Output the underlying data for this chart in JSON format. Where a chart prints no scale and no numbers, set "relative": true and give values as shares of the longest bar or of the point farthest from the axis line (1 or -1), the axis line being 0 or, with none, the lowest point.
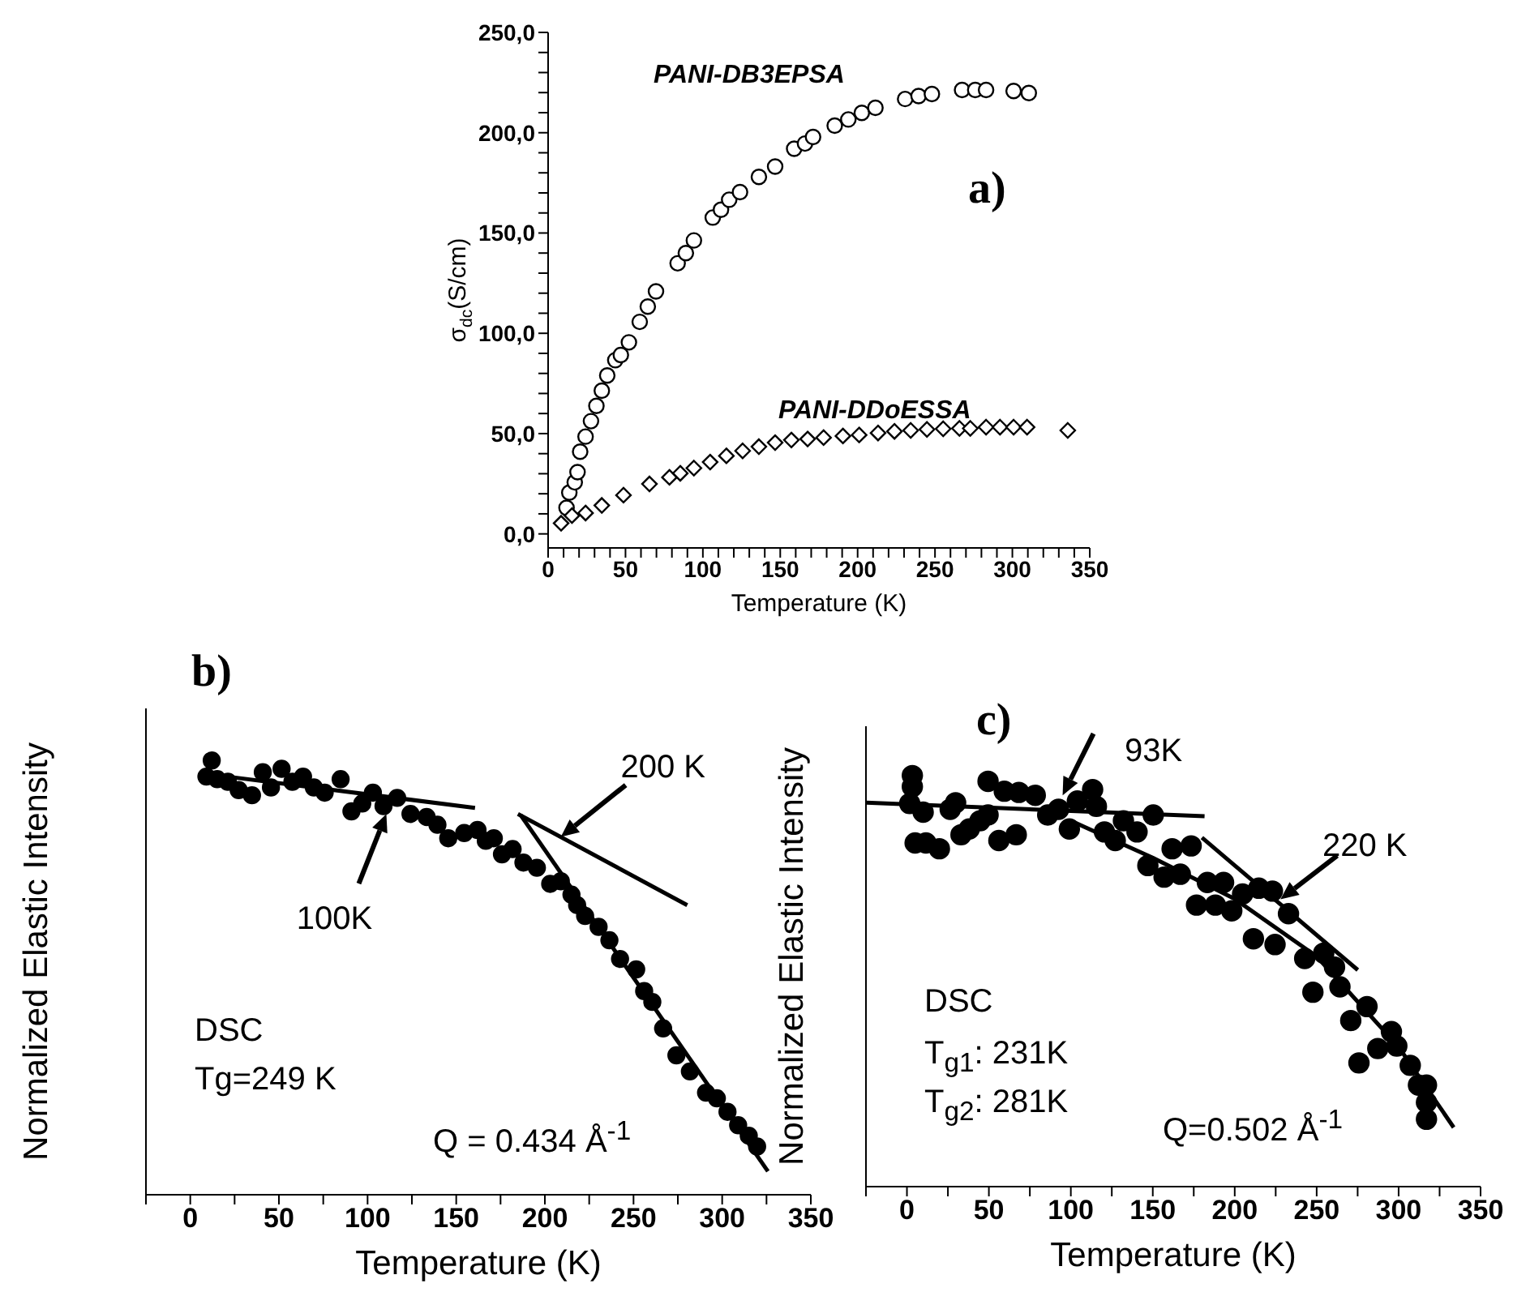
{
  "chart_data": [
    {
      "type": "scatter",
      "xlabel": "Temperature (K)",
      "ylabel": "σ$_{dc}$(S/cm)",
      "annotations": [
        "a)"
      ],
      "xlim": [
        0,
        350
      ],
      "ylim": [
        -7,
        250
      ],
      "xticks": [
        0,
        {
          "value": 10,
          "label": null
        },
        {
          "value": 20,
          "label": null
        },
        {
          "value": 30,
          "label": null
        },
        {
          "value": 40,
          "label": null
        },
        50,
        {
          "value": 60,
          "label": null
        },
        {
          "value": 70,
          "label": null
        },
        {
          "value": 80,
          "label": null
        },
        {
          "value": 90,
          "label": null
        },
        100,
        {
          "value": 110,
          "label": null
        },
        {
          "value": 120,
          "label": null
        },
        {
          "value": 130,
          "label": null
        },
        {
          "value": 140,
          "label": null
        },
        150,
        {
          "value": 160,
          "label": null
        },
        {
          "value": 170,
          "label": null
        },
        {
          "value": 180,
          "label": null
        },
        {
          "value": 190,
          "label": null
        },
        200,
        {
          "value": 210,
          "label": null
        },
        {
          "value": 220,
          "label": null
        },
        {
          "value": 230,
          "label": null
        },
        {
          "value": 240,
          "label": null
        },
        250,
        {
          "value": 260,
          "label": null
        },
        {
          "value": 270,
          "label": null
        },
        {
          "value": 280,
          "label": null
        },
        {
          "value": 290,
          "label": null
        },
        300,
        {
          "value": 310,
          "label": null
        },
        {
          "value": 320,
          "label": null
        },
        {
          "value": 330,
          "label": null
        },
        {
          "value": 340,
          "label": null
        },
        350
      ],
      "yticks": [
        {
          "value": 0,
          "label": "0,0"
        },
        {
          "value": 10,
          "label": null
        },
        {
          "value": 20,
          "label": null
        },
        {
          "value": 30,
          "label": null
        },
        {
          "value": 40,
          "label": null
        },
        {
          "value": 50,
          "label": "50,0"
        },
        {
          "value": 60,
          "label": null
        },
        {
          "value": 70,
          "label": null
        },
        {
          "value": 80,
          "label": null
        },
        {
          "value": 90,
          "label": null
        },
        {
          "value": 100,
          "label": "100,0"
        },
        {
          "value": 110,
          "label": null
        },
        {
          "value": 120,
          "label": null
        },
        {
          "value": 130,
          "label": null
        },
        {
          "value": 140,
          "label": null
        },
        {
          "value": 150,
          "label": "150,0"
        },
        {
          "value": 160,
          "label": null
        },
        {
          "value": 170,
          "label": null
        },
        {
          "value": 180,
          "label": null
        },
        {
          "value": 190,
          "label": null
        },
        {
          "value": 200,
          "label": "200,0"
        },
        {
          "value": 210,
          "label": null
        },
        {
          "value": 220,
          "label": null
        },
        {
          "value": 230,
          "label": null
        },
        {
          "value": 240,
          "label": null
        },
        {
          "value": 250,
          "label": "250,0"
        }
      ],
      "series": [
        {
          "name": "PANI-DB3EPSA",
          "color": "#000000",
          "marker": "circle",
          "x": [
            11.9,
            13.7,
            17.2,
            19,
            20.7,
            24.2,
            27.7,
            31.2,
            34.7,
            38.2,
            43.4,
            47,
            52.2,
            59.2,
            64.4,
            69.7,
            83.7,
            89,
            94.2,
            106.4,
            111.7,
            117,
            124,
            136.2,
            146.7,
            159,
            166,
            171.2,
            185.2,
            194,
            202.7,
            211.5,
            230.7,
            239.4,
            248,
            267.5,
            276,
            283,
            300.8,
            310.6
          ],
          "values": [
            13,
            20.6,
            25.7,
            30.8,
            41,
            48.5,
            56.2,
            63.8,
            71.4,
            79,
            86.6,
            89.2,
            95.5,
            105.7,
            113.3,
            120.9,
            134.9,
            140,
            146.3,
            157.7,
            161.6,
            166.6,
            170.4,
            178,
            183.1,
            192,
            194.6,
            197.9,
            203.5,
            206.6,
            209.9,
            212.4,
            216.8,
            218.3,
            219.3,
            221.3,
            221.3,
            221.3,
            220.8,
            219.8
          ]
        },
        {
          "name": "PANI-DDoESSA",
          "color": "#000000",
          "marker": "diamond",
          "x": [
            8.4,
            15.4,
            24.2,
            34.7,
            48.7,
            65.5,
            78.4,
            85.4,
            94.2,
            104.7,
            115.2,
            125.7,
            136.2,
            146.7,
            157.2,
            167.7,
            178,
            190.5,
            201,
            213.2,
            223.8,
            234.3,
            244.8,
            255.3,
            265.8,
            272.8,
            283,
            292,
            300.8,
            309.5,
            335.8
          ],
          "values": [
            5.3,
            9.1,
            10.4,
            14.2,
            19.3,
            24.9,
            28.2,
            30.2,
            32.8,
            35.8,
            38.9,
            41.4,
            43.5,
            45.5,
            46.8,
            47.3,
            48,
            48.8,
            49.3,
            50.3,
            51.1,
            51.6,
            52.1,
            52.4,
            52.6,
            52.6,
            53.2,
            53.2,
            53.2,
            53.2,
            51.6
          ]
        }
      ]
    },
    {
      "type": "scatter",
      "relative": true,
      "xlabel": "Temperature (K)",
      "ylabel": "Normalized Elastic Intensity",
      "annotations": [
        "b)",
        {
          "text": "100K",
          "x": 110.6,
          "y": 0.877
        },
        {
          "text": "200 K",
          "x": 209,
          "y": 0.824
        },
        "DSC",
        "Tg=249 K",
        "Q = 0.434 Å$^{-1}$"
      ],
      "xlim": [
        -25,
        350
      ],
      "xticks": [
        {
          "value": -25,
          "label": null
        },
        0,
        {
          "value": 25,
          "label": null
        },
        50,
        {
          "value": 75,
          "label": null
        },
        100,
        {
          "value": 125,
          "label": null
        },
        150,
        {
          "value": 175,
          "label": null
        },
        200,
        {
          "value": 225,
          "label": null
        },
        250,
        {
          "value": 275,
          "label": null
        },
        300,
        {
          "value": 325,
          "label": null
        },
        350
      ],
      "series": [
        {
          "color": "#000000",
          "marker": "circle",
          "x": [
            12.1,
            9.1,
            15.2,
            21.2,
            27.3,
            34.8,
            40.9,
            45.5,
            51.5,
            57.6,
            63.6,
            69.7,
            75.8,
            84.8,
            90.9,
            97,
            103,
            109,
            116.7,
            124.2,
            133.3,
            139.4,
            145.5,
            154.5,
            162,
            166.7,
            171.2,
            175.8,
            181.8,
            187.9,
            195.5,
            203,
            209,
            215,
            218.2,
            222.7,
            230.3,
            236.4,
            242.4,
            251.5,
            256,
            260.6,
            266.7,
            274.2,
            281.8,
            290.9,
            297,
            303,
            309,
            315,
            319.7
          ],
          "values": [
            1.0,
            0.963,
            0.957,
            0.951,
            0.932,
            0.92,
            0.973,
            0.938,
            0.981,
            0.951,
            0.963,
            0.938,
            0.926,
            0.957,
            0.883,
            0.901,
            0.926,
            0.895,
            0.914,
            0.877,
            0.87,
            0.852,
            0.821,
            0.833,
            0.84,
            0.815,
            0.821,
            0.784,
            0.796,
            0.765,
            0.753,
            0.716,
            0.722,
            0.691,
            0.667,
            0.642,
            0.617,
            0.586,
            0.543,
            0.519,
            0.469,
            0.444,
            0.383,
            0.321,
            0.284,
            0.235,
            0.222,
            0.191,
            0.16,
            0.136,
            0.111
          ]
        },
        {
          "type": "line",
          "color": "#000000",
          "marker": "none",
          "x": [
            9,
            160.6
          ],
          "values": [
            0.969,
            0.891
          ]
        },
        {
          "type": "line",
          "color": "#000000",
          "marker": "none",
          "x": [
            184.8,
            280.3
          ],
          "values": [
            0.877,
            0.667
          ]
        },
        {
          "type": "line",
          "color": "#000000",
          "marker": "none",
          "x": [
            186.4,
            325.8
          ],
          "values": [
            0.874,
            0.054
          ]
        }
      ]
    },
    {
      "type": "scatter",
      "relative": true,
      "xlabel": "Temperature (K)",
      "ylabel": "Normalized Elastic Intensity",
      "annotations": [
        "c)",
        {
          "text": "93K",
          "x": 95,
          "y": 0.952
        },
        {
          "text": "220 K",
          "x": 227.9,
          "y": 0.699
        },
        "DSC",
        "T$_{g1}$: 231K",
        "T$_{g2}$: 281K",
        "Q=0.502 Å$^{-1}$"
      ],
      "xlim": [
        -25,
        350
      ],
      "xticks": [
        {
          "value": -25,
          "label": null
        },
        0,
        {
          "value": 25,
          "label": null
        },
        50,
        {
          "value": 75,
          "label": null
        },
        100,
        {
          "value": 125,
          "label": null
        },
        150,
        {
          "value": 175,
          "label": null
        },
        200,
        {
          "value": 225,
          "label": null
        },
        250,
        {
          "value": 275,
          "label": null
        },
        300,
        {
          "value": 325,
          "label": null
        },
        350
      ],
      "series": [
        {
          "color": "#000000",
          "marker": "circle",
          "x": [
            3.3,
            3.3,
            1.7,
            9.9,
            5,
            11.6,
            19.8,
            26.4,
            29.7,
            33,
            38,
            44.6,
            49.5,
            49.5,
            56.1,
            59.4,
            66.7,
            68.3,
            78.3,
            85.9,
            92.5,
            99.1,
            104,
            113.3,
            115.6,
            120.5,
            127.1,
            132.1,
            140.4,
            147,
            150.3,
            156.9,
            161.8,
            166.8,
            173.4,
            176.7,
            183.3,
            188.2,
            193.2,
            198.2,
            204.8,
            211.4,
            214.7,
            223,
            224.6,
            232.8,
            242.7,
            247.7,
            254.3,
            260.9,
            264.2,
            270.8,
            275.8,
            280.7,
            287.3,
            295.6,
            298.9,
            307.1,
            312.1,
            317,
            317,
            317
          ],
          "values": [
            1.0,
            0.973,
            0.932,
            0.911,
            0.836,
            0.836,
            0.822,
            0.918,
            0.934,
            0.856,
            0.87,
            0.89,
            0.904,
            0.986,
            0.842,
            0.962,
            0.856,
            0.959,
            0.952,
            0.904,
            0.918,
            0.87,
            0.938,
            0.966,
            0.925,
            0.863,
            0.842,
            0.89,
            0.863,
            0.781,
            0.904,
            0.753,
            0.822,
            0.76,
            0.829,
            0.685,
            0.74,
            0.685,
            0.74,
            0.671,
            0.712,
            0.603,
            0.726,
            0.719,
            0.589,
            0.664,
            0.555,
            0.473,
            0.568,
            0.534,
            0.486,
            0.404,
            0.301,
            0.438,
            0.336,
            0.377,
            0.342,
            0.295,
            0.247,
            0.247,
            0.205,
            0.164
          ]
        },
        {
          "type": "line",
          "color": "#000000",
          "marker": "none",
          "x": [
            -24.8,
            181.6
          ],
          "values": [
            0.934,
            0.901
          ]
        },
        {
          "type": "line",
          "color": "#000000",
          "marker": "none",
          "x": [
            100,
            150,
            200,
            250,
            300,
            333.6
          ],
          "values": [
            0.89,
            0.8,
            0.7,
            0.56,
            0.34,
            0.144
          ]
        },
        {
          "type": "line",
          "color": "#000000",
          "marker": "none",
          "x": [
            180,
            275.1
          ],
          "values": [
            0.849,
            0.527
          ]
        }
      ]
    }
  ]
}
